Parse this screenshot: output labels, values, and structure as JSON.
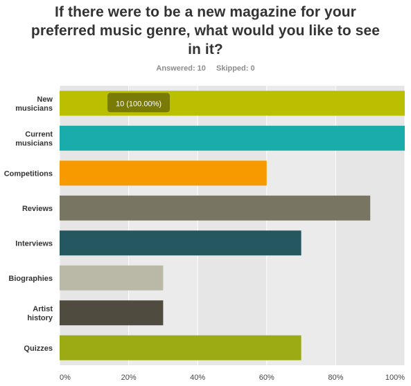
{
  "title": "If there were to be a new magazine for your preferred music genre, what would you like to see in it?",
  "answered_label": "Answered: 10",
  "skipped_label": "Skipped: 0",
  "colors": {
    "plot_bg": "#e6e6e6",
    "plot_bg_alt": "#ebebeb",
    "grid": "#ffffff",
    "tooltip_bg": "#7a7a06",
    "tooltip_text": "#ffffff"
  },
  "tooltip": {
    "category": "New musicians",
    "text": "10 (100.00%)"
  },
  "chart_data": {
    "type": "bar",
    "orientation": "horizontal",
    "categories": [
      "New musicians",
      "Current musicians",
      "Competitions",
      "Reviews",
      "Interviews",
      "Biographies",
      "Artist history",
      "Quizzes"
    ],
    "category_label_lines": [
      [
        "New",
        "musicians"
      ],
      [
        "Current",
        "musicians"
      ],
      [
        "Competitions"
      ],
      [
        "Reviews"
      ],
      [
        "Interviews"
      ],
      [
        "Biographies"
      ],
      [
        "Artist",
        "history"
      ],
      [
        "Quizzes"
      ]
    ],
    "values": [
      100,
      100,
      60,
      90,
      70,
      30,
      30,
      70
    ],
    "bar_colors": [
      "#bac000",
      "#1aabab",
      "#f79a00",
      "#787662",
      "#255760",
      "#bab8a6",
      "#4f4b3e",
      "#9aab14"
    ],
    "x_ticks": [
      0,
      20,
      40,
      60,
      80,
      100
    ],
    "x_tick_labels": [
      "0%",
      "20%",
      "40%",
      "60%",
      "80%",
      "100%"
    ],
    "xlim": [
      0,
      100
    ],
    "unit": "%",
    "grid": true,
    "legend": "none"
  }
}
